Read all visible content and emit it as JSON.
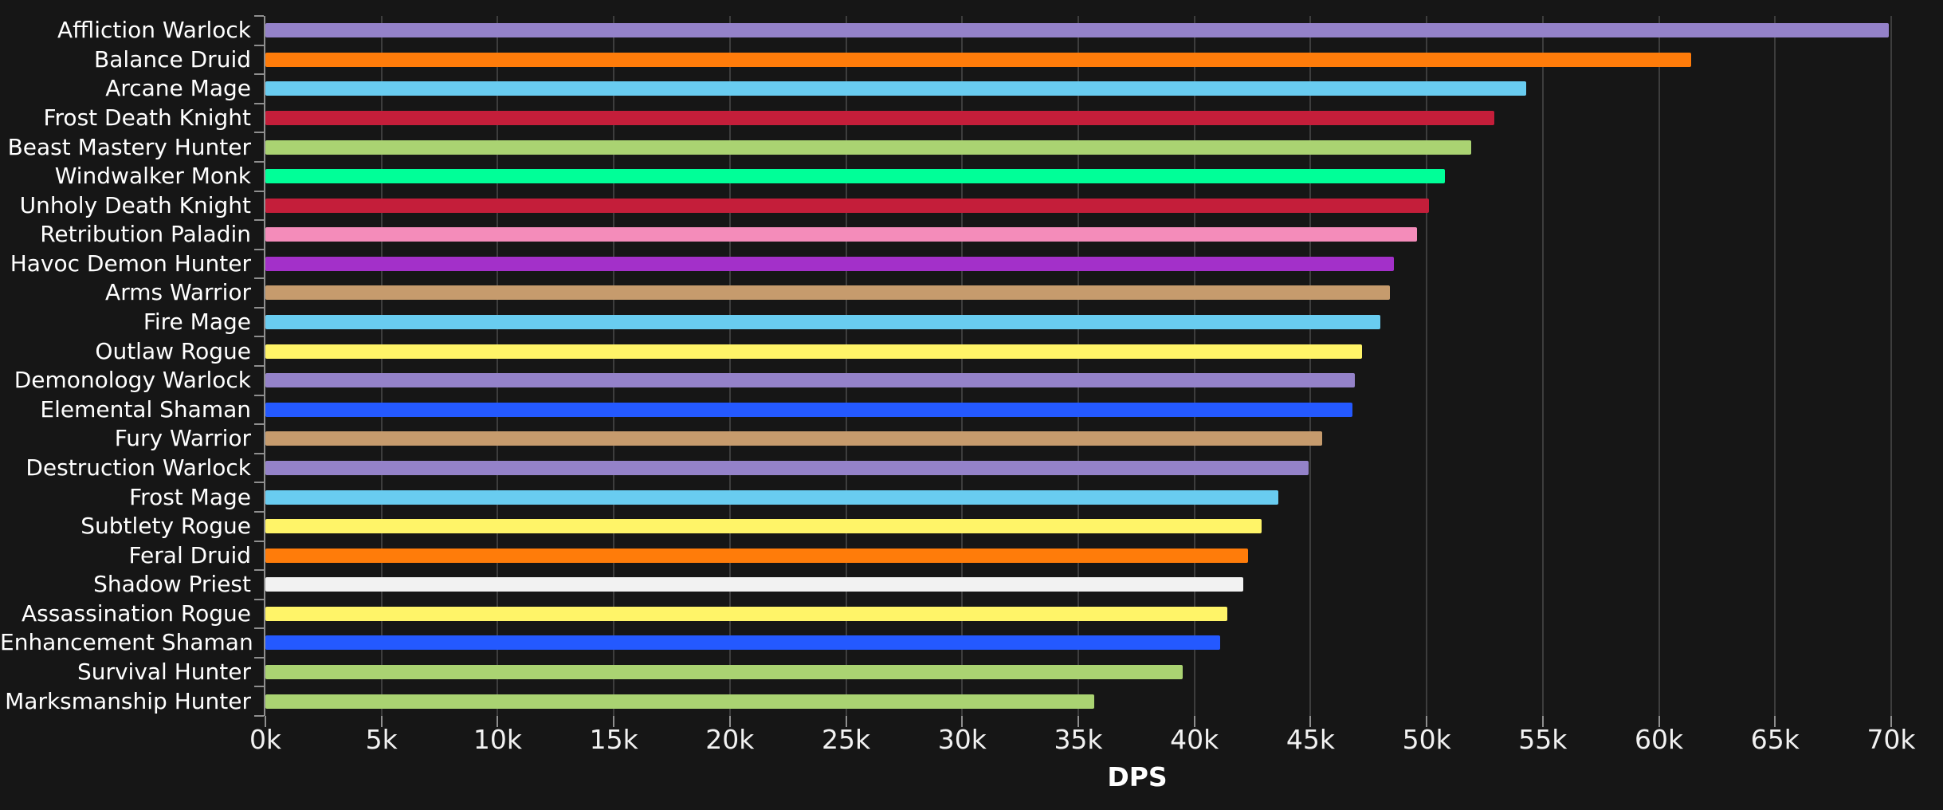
{
  "chart_data": {
    "type": "bar",
    "orientation": "horizontal",
    "title": "",
    "xlabel": "DPS",
    "ylabel": "",
    "xlim": [
      0,
      70000
    ],
    "x_tick_labels": [
      "0k",
      "5k",
      "10k",
      "15k",
      "20k",
      "25k",
      "30k",
      "35k",
      "40k",
      "45k",
      "50k",
      "55k",
      "60k",
      "65k",
      "70k"
    ],
    "grid": "vertical-gridlines-on",
    "legend": "none",
    "categories": [
      "Affliction Warlock",
      "Balance Druid",
      "Arcane Mage",
      "Frost Death Knight",
      "Beast Mastery Hunter",
      "Windwalker Monk",
      "Unholy Death Knight",
      "Retribution Paladin",
      "Havoc Demon Hunter",
      "Arms Warrior",
      "Fire Mage",
      "Outlaw Rogue",
      "Demonology Warlock",
      "Elemental Shaman",
      "Fury Warrior",
      "Destruction Warlock",
      "Frost Mage",
      "Subtlety Rogue",
      "Feral Druid",
      "Shadow Priest",
      "Assassination Rogue",
      "Enhancement Shaman",
      "Survival Hunter",
      "Marksmanship Hunter"
    ],
    "values": [
      69900,
      61400,
      54300,
      52900,
      51900,
      50800,
      50100,
      49600,
      48600,
      48400,
      48000,
      47200,
      46900,
      46800,
      45500,
      44900,
      43600,
      42900,
      42300,
      42100,
      41400,
      41100,
      39500,
      35700
    ],
    "colors": [
      "#9482C9",
      "#FF7C0A",
      "#69CCF0",
      "#C41E3A",
      "#AAD372",
      "#00FF98",
      "#C41E3A",
      "#F48CBA",
      "#A330C9",
      "#C69B6D",
      "#69CCF0",
      "#FFF468",
      "#9482C9",
      "#2459FF",
      "#C69B6D",
      "#9482C9",
      "#69CCF0",
      "#FFF468",
      "#FF7C0A",
      "#F2F2F2",
      "#FFF468",
      "#2459FF",
      "#AAD372",
      "#AAD372"
    ],
    "background_color": "#161616",
    "gridline_color": "#3d3d3d",
    "axis_color": "#8f8f8f",
    "label_color": "#ffffff"
  }
}
